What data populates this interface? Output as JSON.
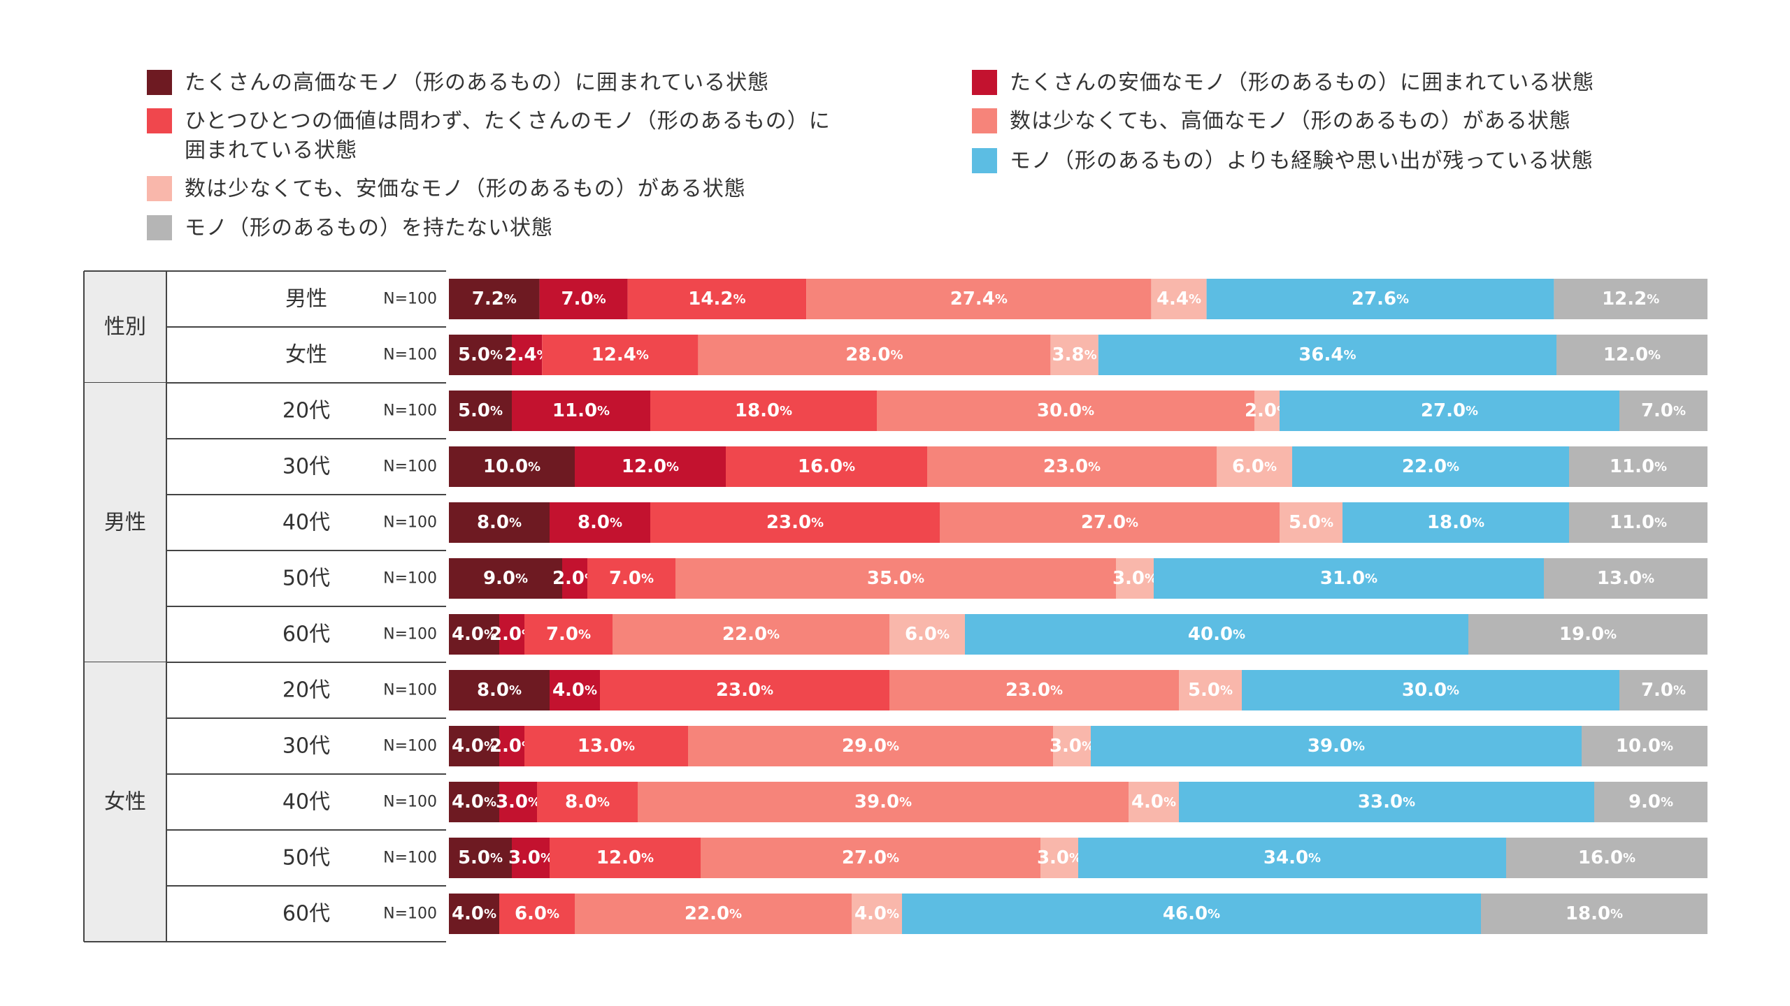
{
  "chart_data": {
    "type": "bar",
    "orientation": "horizontal",
    "stacked": true,
    "percent_stacked": true,
    "legend_position": "top",
    "grid": false,
    "xlim": [
      0,
      100
    ],
    "value_suffix": "%",
    "series": [
      {
        "name": "たくさんの高価なモノ（形のあるもの）に囲まれている状態",
        "color": "#6e1a22",
        "values": [
          7.2,
          5.0,
          5.0,
          10.0,
          8.0,
          9.0,
          4.0,
          8.0,
          4.0,
          4.0,
          5.0,
          4.0
        ],
        "labels": [
          "7.2",
          "5.0",
          "5.0",
          "10.0",
          "8.0",
          "9.0",
          "4.0",
          "8.0",
          "4.0",
          "4.0",
          "5.0",
          "4.0"
        ]
      },
      {
        "name": "たくさんの安価なモノ（形のあるもの）に囲まれている状態",
        "color": "#c3122f",
        "values": [
          7.0,
          2.4,
          11.0,
          12.0,
          8.0,
          2.0,
          2.0,
          4.0,
          2.0,
          3.0,
          3.0,
          0.0
        ],
        "labels": [
          "7.0",
          "2.4",
          "11.0",
          "12.0",
          "8.0",
          "2.0",
          "2.0",
          "4.0",
          "2.0",
          "3.0",
          "3.0",
          ""
        ]
      },
      {
        "name": "ひとつひとつの価値は問わず、たくさんのモノ（形のあるもの）に\n囲まれている状態",
        "color": "#f0474d",
        "values": [
          14.2,
          12.4,
          18.0,
          16.0,
          23.0,
          7.0,
          7.0,
          23.0,
          13.0,
          8.0,
          12.0,
          6.0
        ],
        "labels": [
          "14.2",
          "12.4",
          "18.0",
          "16.0",
          "23.0",
          "7.0",
          "7.0",
          "23.0",
          "13.0",
          "8.0",
          "12.0",
          "6.0"
        ]
      },
      {
        "name": "数は少なくても、高価なモノ（形のあるもの）がある状態",
        "color": "#f6847a",
        "values": [
          27.4,
          28.0,
          30.0,
          23.0,
          27.0,
          35.0,
          22.0,
          23.0,
          29.0,
          39.0,
          27.0,
          22.0
        ],
        "labels": [
          "27.4",
          "28.0",
          "30.0",
          "23.0",
          "27.0",
          "35.0",
          "22.0",
          "23.0",
          "29.0",
          "39.0",
          "27.0",
          "22.0"
        ]
      },
      {
        "name": "数は少なくても、安価なモノ（形のあるもの）がある状態",
        "color": "#f9b7ab",
        "values": [
          4.4,
          3.8,
          2.0,
          6.0,
          5.0,
          3.0,
          6.0,
          5.0,
          3.0,
          4.0,
          3.0,
          4.0
        ],
        "labels": [
          "4.4",
          "3.8",
          "2.0",
          "6.0",
          "5.0",
          "3.0",
          "6.0",
          "5.0",
          "3.0",
          "4.0",
          "3.0",
          "4.0"
        ]
      },
      {
        "name": "モノ（形のあるもの）よりも経験や思い出が残っている状態",
        "color": "#5cbde3",
        "values": [
          27.6,
          36.4,
          27.0,
          22.0,
          18.0,
          31.0,
          40.0,
          30.0,
          39.0,
          33.0,
          34.0,
          46.0
        ],
        "labels": [
          "27.6",
          "36.4",
          "27.0",
          "22.0",
          "18.0",
          "31.0",
          "40.0",
          "30.0",
          "39.0",
          "33.0",
          "34.0",
          "46.0"
        ]
      },
      {
        "name": "モノ（形のあるもの）を持たない状態",
        "color": "#b5b5b5",
        "values": [
          12.2,
          12.0,
          7.0,
          11.0,
          11.0,
          13.0,
          19.0,
          7.0,
          10.0,
          9.0,
          16.0,
          18.0
        ],
        "labels": [
          "12.2",
          "12.0",
          "7.0",
          "11.0",
          "11.0",
          "13.0",
          "19.0",
          "7.0",
          "10.0",
          "9.0",
          "16.0",
          "18.0"
        ]
      }
    ],
    "categories": [
      "男性",
      "女性",
      "20代",
      "30代",
      "40代",
      "50代",
      "60代",
      "20代",
      "30代",
      "40代",
      "50代",
      "60代"
    ],
    "sample_sizes": [
      "N=100",
      "N=100",
      "N=100",
      "N=100",
      "N=100",
      "N=100",
      "N=100",
      "N=100",
      "N=100",
      "N=100",
      "N=100",
      "N=100"
    ],
    "groups": [
      {
        "label": "性別",
        "start": 0,
        "count": 2
      },
      {
        "label": "男性",
        "start": 2,
        "count": 5
      },
      {
        "label": "女性",
        "start": 7,
        "count": 5
      }
    ],
    "legend_order": [
      0,
      2,
      4,
      6,
      1,
      3,
      5
    ]
  }
}
